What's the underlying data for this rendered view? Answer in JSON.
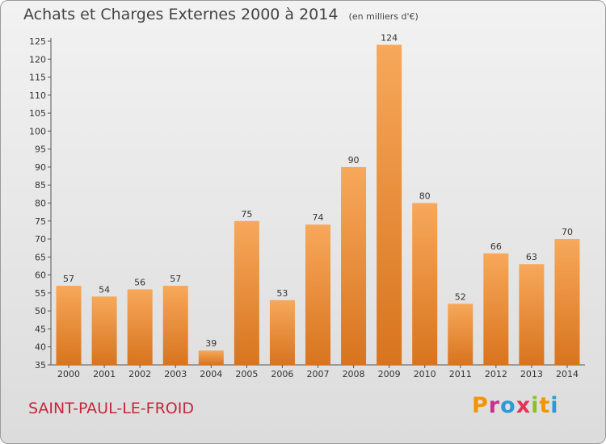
{
  "header": {
    "title": "Achats et Charges Externes 2000 à 2014",
    "unit": "(en milliers d'€)"
  },
  "commune": "SAINT-PAUL-LE-FROID",
  "brand": {
    "name": "Proxiti",
    "letter_colors": [
      "#f29400",
      "#c7308a",
      "#2b9ad6",
      "#e6325a",
      "#8cbf26",
      "#f29400",
      "#2b9ad6"
    ]
  },
  "colors": {
    "bar_light": "#f7a85a",
    "bar_dark": "#d8741e",
    "commune": "#c3283a"
  },
  "chart_data": {
    "type": "bar",
    "title": "Achats et Charges Externes 2000 à 2014",
    "subtitle": "(en milliers d'€)",
    "xlabel": "",
    "ylabel": "",
    "categories": [
      "2000",
      "2001",
      "2002",
      "2003",
      "2004",
      "2005",
      "2006",
      "2007",
      "2008",
      "2009",
      "2010",
      "2011",
      "2012",
      "2013",
      "2014"
    ],
    "values": [
      57,
      54,
      56,
      57,
      39,
      75,
      53,
      74,
      90,
      124,
      80,
      52,
      66,
      63,
      70
    ],
    "ylim": [
      35,
      125
    ],
    "ytick_step": 5,
    "grid": false,
    "legend": "none"
  }
}
